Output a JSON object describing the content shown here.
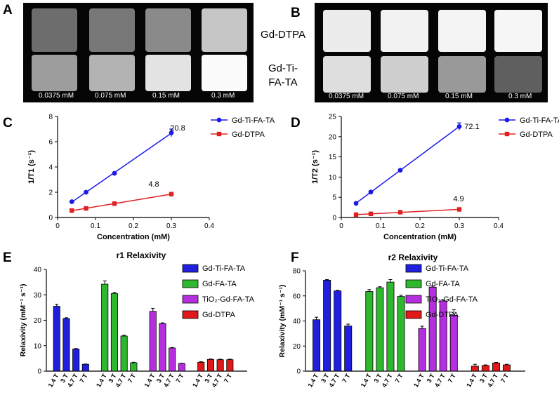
{
  "panels": [
    "A",
    "B",
    "C",
    "D",
    "E",
    "F"
  ],
  "mri": {
    "A": {
      "wells": [
        "#6d6d6d",
        "#787878",
        "#8a8a8a",
        "#c6c6c6",
        "#9d9d9d",
        "#b3b3b3",
        "#e3e3e3",
        "#fbfbfb"
      ]
    },
    "B": {
      "wells": [
        "#ececec",
        "#f2f2f2",
        "#f4f4f4",
        "#f6f6f6",
        "#dedede",
        "#cfcfcf",
        "#999999",
        "#5f5f5f"
      ]
    },
    "concentrations": [
      "0.0375 mM",
      "0.075 mM",
      "0.15 mM",
      "0.3 mM"
    ],
    "row_labels": {
      "top": "Gd-DTPA",
      "bottom_line1": "Gd-Ti-",
      "bottom_line2": "FA-TA"
    }
  },
  "colors": {
    "blue": "#1a1ae6",
    "red": "#e02020",
    "green": "#2eb82e",
    "purple": "#b52fe0",
    "bar_blue": "#1f1fdd",
    "bar_red": "#e01818"
  },
  "chart_data": [
    {
      "id": "C",
      "type": "line",
      "xlabel": "Concentration (mM)",
      "ylabel": "1/T1 (s⁻¹)",
      "xlim": [
        0,
        0.4
      ],
      "ylim": [
        0,
        8
      ],
      "xticks": [
        0,
        0.1,
        0.2,
        0.3,
        0.4
      ],
      "yticks": [
        0,
        2,
        4,
        6,
        8
      ],
      "series": [
        {
          "name": "Gd-Ti-FA-TA",
          "color": "#1a1ae6",
          "marker": "circle",
          "x": [
            0.0375,
            0.075,
            0.15,
            0.3
          ],
          "y": [
            1.25,
            2.0,
            3.5,
            6.7
          ],
          "err": [
            0,
            0,
            0,
            0.3
          ],
          "slope_label": "20.8"
        },
        {
          "name": "Gd-DTPA",
          "color": "#e02020",
          "marker": "square",
          "x": [
            0.0375,
            0.075,
            0.15,
            0.3
          ],
          "y": [
            0.55,
            0.72,
            1.1,
            1.85
          ],
          "err": [
            0,
            0,
            0,
            0
          ],
          "slope_label": "4.8"
        }
      ]
    },
    {
      "id": "D",
      "type": "line",
      "xlabel": "Concentration (mM)",
      "ylabel": "1/T2 (s⁻¹)",
      "xlim": [
        0,
        0.4
      ],
      "ylim": [
        0,
        25
      ],
      "xticks": [
        0,
        0.1,
        0.2,
        0.3,
        0.4
      ],
      "yticks": [
        0,
        5,
        10,
        15,
        20,
        25
      ],
      "series": [
        {
          "name": "Gd-Ti-FA-TA",
          "color": "#1a1ae6",
          "marker": "circle",
          "x": [
            0.0375,
            0.075,
            0.15,
            0.3
          ],
          "y": [
            3.5,
            6.3,
            11.7,
            22.5
          ],
          "err": [
            0,
            0,
            0,
            0.9
          ],
          "slope_label": "72.1"
        },
        {
          "name": "Gd-DTPA",
          "color": "#e02020",
          "marker": "square",
          "x": [
            0.0375,
            0.075,
            0.15,
            0.3
          ],
          "y": [
            0.7,
            0.9,
            1.3,
            2.0
          ],
          "err": [
            0,
            0,
            0,
            0
          ],
          "slope_label": "4.9"
        }
      ]
    },
    {
      "id": "E",
      "type": "bar",
      "title": "r1 Relaxivity",
      "ylabel": "Relaxivity (mM⁻¹ s⁻¹)",
      "ylim": [
        0,
        40
      ],
      "yticks": [
        0,
        10,
        20,
        30,
        40
      ],
      "categories": [
        "1.4 T",
        "3 T",
        "4.7 T",
        "7 T"
      ],
      "series": [
        {
          "name": "Gd-Ti-FA-TA",
          "color": "#1f1fdd",
          "values": [
            25.5,
            20.7,
            8.7,
            2.7
          ],
          "err": [
            0.8,
            0.3,
            0.2,
            0.1
          ]
        },
        {
          "name": "Gd-FA-TA",
          "color": "#2eb82e",
          "values": [
            34.2,
            30.5,
            13.8,
            3.3
          ],
          "err": [
            1.3,
            0.5,
            0.3,
            0.2
          ]
        },
        {
          "name": "TiO₂-Gd-FA-TA",
          "color": "#b52fe0",
          "values": [
            23.5,
            18.7,
            9.1,
            3.0
          ],
          "err": [
            1.2,
            0.3,
            0.2,
            0.1
          ]
        },
        {
          "name": "Gd-DTPA",
          "color": "#e01818",
          "values": [
            3.5,
            4.6,
            4.5,
            4.5
          ],
          "err": [
            0.2,
            0.2,
            0.2,
            0.2
          ]
        }
      ]
    },
    {
      "id": "F",
      "type": "bar",
      "title": "r2 Relaxivity",
      "ylabel": "Relaxivity (mM⁻¹ s⁻¹)",
      "ylim": [
        0,
        80
      ],
      "yticks": [
        0,
        20,
        40,
        60,
        80
      ],
      "categories": [
        "1.4 T",
        "3 T",
        "4.7 T",
        "7 T"
      ],
      "series": [
        {
          "name": "Gd-Ti-FA-TA",
          "color": "#1f1fdd",
          "values": [
            41,
            72.5,
            64,
            36
          ],
          "err": [
            2,
            0.5,
            0.5,
            1.5
          ]
        },
        {
          "name": "Gd-FA-TA",
          "color": "#2eb82e",
          "values": [
            63.5,
            66.5,
            71,
            59.5
          ],
          "err": [
            1.5,
            0.8,
            2,
            1
          ]
        },
        {
          "name": "TiO₂-Gd-FA-TA",
          "color": "#b52fe0",
          "values": [
            34,
            67,
            56,
            44.5
          ],
          "err": [
            1.8,
            0.8,
            0.8,
            4.5
          ]
        },
        {
          "name": "Gd-DTPA",
          "color": "#e01818",
          "values": [
            4,
            4.5,
            6.5,
            5
          ],
          "err": [
            1.5,
            0.5,
            0.5,
            0.5
          ]
        }
      ]
    }
  ]
}
